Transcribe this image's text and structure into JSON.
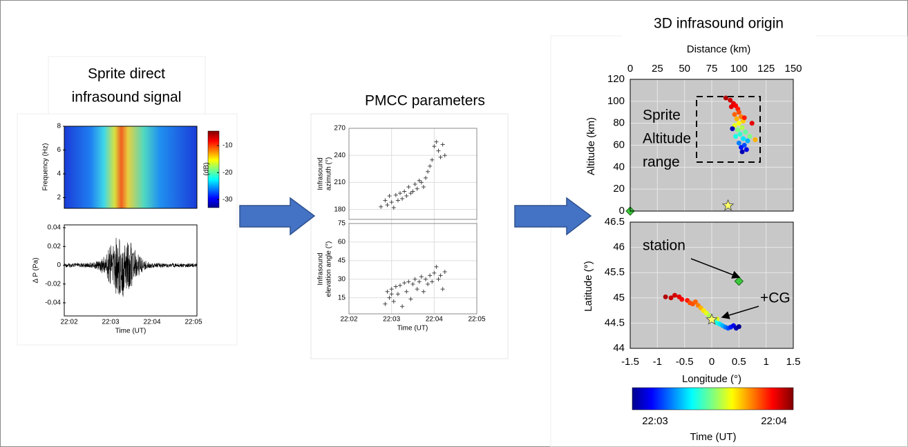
{
  "sprite_signal": {
    "title": [
      "Sprite direct",
      "infrasound signal"
    ],
    "freq_label": "Frequency (Hz)",
    "freq_ticks": [
      2,
      4,
      6,
      8
    ],
    "freq_lim": [
      1.1,
      8
    ],
    "db_label": "(dB)",
    "db_ticks": [
      -10,
      -20,
      -30
    ],
    "db_lim": [
      -33,
      -4.6
    ],
    "dp_label": "Δ P (Pa)",
    "dp_ticks": [
      0.04,
      0.02,
      0,
      -0.02,
      -0.04
    ],
    "dp_lim": [
      -0.054,
      0.043
    ],
    "time_ticks": [
      "22:02",
      "22:03",
      "22:04",
      "22:05"
    ],
    "time_label": "Time (UT)"
  },
  "pmcc": {
    "title": "PMCC parameters",
    "azimuth_label": [
      "Infrasound",
      "azimuth (°)"
    ],
    "azimuth_ticks": [
      180,
      210,
      240,
      270
    ],
    "azimuth_lim": [
      169,
      270
    ],
    "elevation_label": [
      "Infrasound",
      "elevation angle (°)"
    ],
    "elevation_ticks": [
      15,
      30,
      45,
      60,
      75
    ],
    "elevation_lim": [
      2,
      75
    ],
    "time_lim": [
      0,
      3
    ],
    "time_ticks": [
      "22:02",
      "22:03",
      "22:04",
      "22:05"
    ],
    "time_label": "Time (UT)",
    "azimuth_points": [
      [
        0.75,
        183
      ],
      [
        0.85,
        190
      ],
      [
        0.9,
        185
      ],
      [
        0.95,
        195
      ],
      [
        1.0,
        188
      ],
      [
        1.05,
        182
      ],
      [
        1.1,
        196
      ],
      [
        1.15,
        190
      ],
      [
        1.2,
        198
      ],
      [
        1.25,
        192
      ],
      [
        1.3,
        200
      ],
      [
        1.35,
        195
      ],
      [
        1.4,
        205
      ],
      [
        1.45,
        198
      ],
      [
        1.5,
        200
      ],
      [
        1.55,
        208
      ],
      [
        1.6,
        203
      ],
      [
        1.65,
        212
      ],
      [
        1.7,
        210
      ],
      [
        1.75,
        205
      ],
      [
        1.8,
        215
      ],
      [
        1.85,
        222
      ],
      [
        1.9,
        228
      ],
      [
        1.95,
        235
      ],
      [
        2.0,
        250
      ],
      [
        2.05,
        255
      ],
      [
        2.1,
        245
      ],
      [
        2.15,
        238
      ],
      [
        2.2,
        252
      ],
      [
        2.25,
        240
      ]
    ],
    "elevation_points": [
      [
        0.85,
        10
      ],
      [
        0.9,
        20
      ],
      [
        0.95,
        15
      ],
      [
        1.0,
        22
      ],
      [
        1.0,
        18
      ],
      [
        1.05,
        12
      ],
      [
        1.1,
        24
      ],
      [
        1.15,
        18
      ],
      [
        1.2,
        25
      ],
      [
        1.25,
        8
      ],
      [
        1.3,
        27
      ],
      [
        1.35,
        20
      ],
      [
        1.4,
        28
      ],
      [
        1.45,
        14
      ],
      [
        1.5,
        26
      ],
      [
        1.55,
        30
      ],
      [
        1.6,
        22
      ],
      [
        1.65,
        28
      ],
      [
        1.7,
        32
      ],
      [
        1.75,
        20
      ],
      [
        1.8,
        30
      ],
      [
        1.85,
        26
      ],
      [
        1.9,
        33
      ],
      [
        1.95,
        28
      ],
      [
        2.0,
        35
      ],
      [
        2.05,
        40
      ],
      [
        2.1,
        30
      ],
      [
        2.15,
        33
      ],
      [
        2.2,
        22
      ],
      [
        2.25,
        36
      ]
    ]
  },
  "origin": {
    "title": "3D infrasound origin",
    "distance_label": "Distance (km)",
    "distance_ticks": [
      0,
      25,
      50,
      75,
      100,
      125,
      150
    ],
    "distance_lim": [
      0,
      150
    ],
    "altitude_label": "Altitude (km)",
    "altitude_ticks": [
      0,
      20,
      40,
      60,
      80,
      100,
      120
    ],
    "altitude_lim": [
      0,
      120
    ],
    "latitude_label": "Latitude (°)",
    "latitude_ticks": [
      44,
      44.5,
      45,
      45.5,
      46,
      46.5
    ],
    "latitude_lim": [
      44,
      46.5
    ],
    "longitude_label": "Longitude (°)",
    "longitude_ticks": [
      -1.5,
      -1,
      -0.5,
      0,
      0.5,
      1,
      1.5
    ],
    "longitude_lim": [
      -1.5,
      1.5
    ],
    "annotations": {
      "range": [
        "Sprite",
        "Altitude",
        "range"
      ],
      "station": "station",
      "cg": "+CG"
    },
    "colorbar_ticks": [
      "22:03",
      "22:04"
    ],
    "colorbar_label": "Time (UT)",
    "station_profile": [
      0,
      0
    ],
    "cg_profile": [
      90,
      5
    ],
    "station_map": [
      0.5,
      45.33
    ],
    "cg_map": [
      0,
      44.57
    ],
    "profile_points": [
      [
        88,
        103,
        0.95
      ],
      [
        92,
        101,
        0.92
      ],
      [
        95,
        98,
        0.9
      ],
      [
        97,
        96,
        0.88
      ],
      [
        99,
        93,
        0.85
      ],
      [
        93,
        95,
        0.9
      ],
      [
        100,
        90,
        0.8
      ],
      [
        96,
        88,
        0.78
      ],
      [
        102,
        86,
        0.75
      ],
      [
        98,
        84,
        0.7
      ],
      [
        104,
        82,
        0.68
      ],
      [
        100,
        80,
        0.62
      ],
      [
        96,
        78,
        0.6
      ],
      [
        103,
        76,
        0.55
      ],
      [
        99,
        74,
        0.5
      ],
      [
        106,
        72,
        0.47
      ],
      [
        101,
        70,
        0.42
      ],
      [
        97,
        68,
        0.4
      ],
      [
        104,
        66,
        0.35
      ],
      [
        108,
        64,
        0.3
      ],
      [
        100,
        62,
        0.25
      ],
      [
        105,
        60,
        0.2
      ],
      [
        102,
        58,
        0.15
      ],
      [
        107,
        56,
        0.1
      ],
      [
        103,
        54,
        0.05
      ],
      [
        94,
        75,
        0.05
      ],
      [
        112,
        80,
        0.9
      ],
      [
        115,
        65,
        0.7
      ],
      [
        110,
        68,
        0.5
      ],
      [
        105,
        85,
        0.85
      ]
    ],
    "map_points": [
      [
        -0.85,
        45.02,
        0.95
      ],
      [
        -0.75,
        45.0,
        0.93
      ],
      [
        -0.68,
        45.05,
        0.92
      ],
      [
        -0.6,
        45.02,
        0.9
      ],
      [
        -0.55,
        44.97,
        0.88
      ],
      [
        -0.45,
        44.95,
        0.85
      ],
      [
        -0.4,
        44.9,
        0.8
      ],
      [
        -0.35,
        44.88,
        0.8
      ],
      [
        -0.3,
        44.92,
        0.78
      ],
      [
        -0.25,
        44.85,
        0.75
      ],
      [
        -0.2,
        44.8,
        0.7
      ],
      [
        -0.15,
        44.75,
        0.65
      ],
      [
        -0.1,
        44.7,
        0.6
      ],
      [
        0.1,
        44.58,
        0.6
      ],
      [
        -0.05,
        44.65,
        0.55
      ],
      [
        0.0,
        44.6,
        0.5
      ],
      [
        0.05,
        44.55,
        0.45
      ],
      [
        0.1,
        44.5,
        0.4
      ],
      [
        0.15,
        44.48,
        0.35
      ],
      [
        0.2,
        44.45,
        0.3
      ],
      [
        0.25,
        44.42,
        0.25
      ],
      [
        0.3,
        44.4,
        0.2
      ],
      [
        0.35,
        44.42,
        0.15
      ],
      [
        0.4,
        44.45,
        0.1
      ],
      [
        0.45,
        44.4,
        0.05
      ],
      [
        0.5,
        44.43,
        0.02
      ]
    ]
  }
}
